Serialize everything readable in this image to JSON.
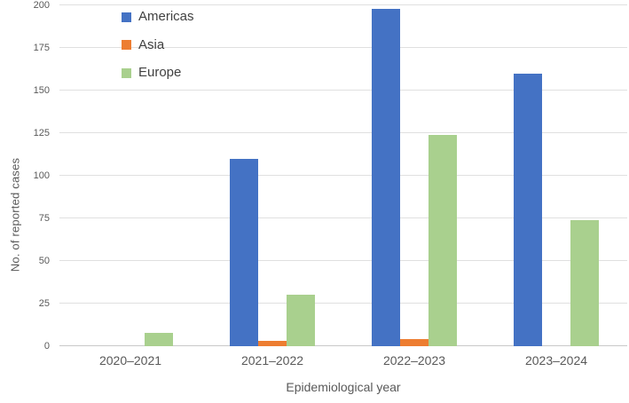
{
  "chart_data": {
    "type": "bar",
    "title": "",
    "categories": [
      "2020–2021",
      "2021–2022",
      "2022–2023",
      "2023–2024"
    ],
    "series": [
      {
        "name": "Americas",
        "color": "#4472C4",
        "values": [
          0,
          110,
          198,
          160
        ]
      },
      {
        "name": "Asia",
        "color": "#ED7D31",
        "values": [
          0,
          3,
          4,
          0
        ]
      },
      {
        "name": "Europe",
        "color": "#A9D08E",
        "values": [
          8,
          30,
          124,
          74
        ]
      }
    ],
    "xlabel": "Epidemiological year",
    "ylabel": "No. of reported cases",
    "ylim": [
      0,
      200
    ],
    "ytick_step": 25,
    "grid": true,
    "legend_position": "inside-top-left",
    "gridline_color": "#E0E0E0",
    "axis_text_color": "#595959"
  }
}
